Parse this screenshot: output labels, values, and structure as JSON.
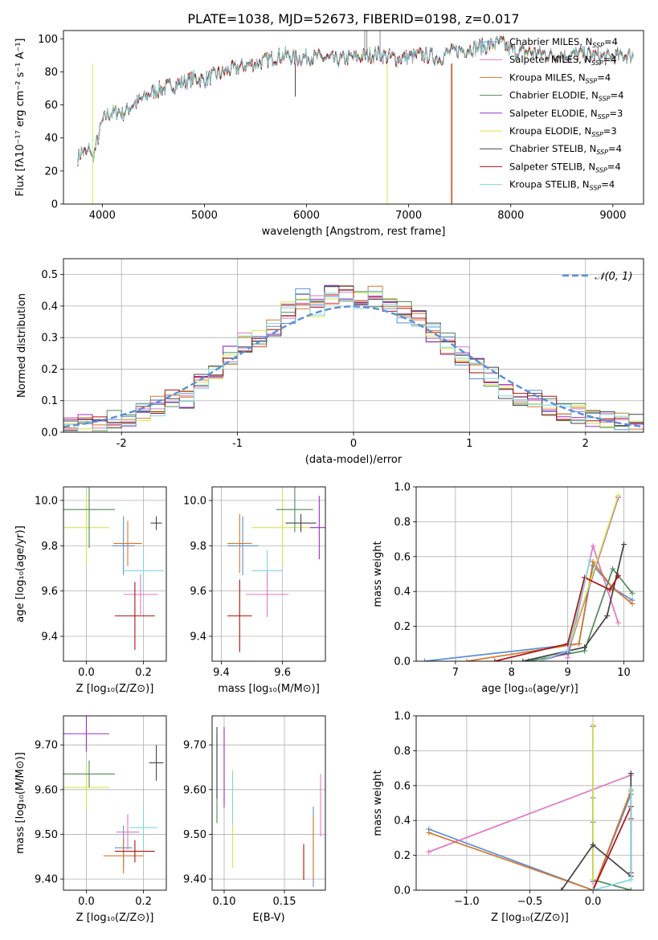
{
  "figure": {
    "title": "PLATE=1038, MJD=52673, FIBERID=0198, z=0.017",
    "legend_main": "Chabrier MILES, N",
    "legend_sub": "SSP",
    "legend_tail": "=4"
  },
  "chart_data": [
    {
      "id": "spectrum",
      "type": "line",
      "xlabel": "wavelength [Angstrom, rest frame]",
      "ylabel": "Flux [fλ10⁻¹⁷ erg cm⁻² s⁻¹ A⁻¹]",
      "xlim": [
        3620,
        9300
      ],
      "ylim": [
        0,
        105
      ],
      "xticks": [
        4000,
        5000,
        6000,
        7000,
        8000,
        9000
      ],
      "yticks": [
        0,
        20,
        40,
        60,
        80,
        100
      ],
      "x": [
        3760,
        3800,
        3850,
        3880,
        3900,
        3950,
        4000,
        4050,
        4100,
        4150,
        4200,
        4300,
        4400,
        4500,
        4600,
        4700,
        4800,
        4900,
        5000,
        5100,
        5200,
        5300,
        5400,
        5500,
        5600,
        5700,
        5800,
        5900,
        6000,
        6100,
        6200,
        6300,
        6400,
        6500,
        6600,
        6700,
        6800,
        6900,
        7000,
        7100,
        7200,
        7300,
        7400,
        7500,
        7600,
        7700,
        7800,
        7900,
        8000,
        8100,
        8200,
        8300,
        8400,
        8500,
        8600,
        8700,
        8800,
        8900,
        9000,
        9100,
        9200
      ],
      "y": [
        28,
        32,
        30,
        35,
        26,
        38,
        50,
        54,
        55,
        56,
        55,
        60,
        64,
        68,
        70,
        72,
        74,
        76,
        75,
        78,
        80,
        82,
        84,
        85,
        87,
        89,
        90,
        88,
        89,
        89,
        88,
        87,
        88,
        89,
        90,
        91,
        89,
        88,
        89,
        90,
        90,
        88,
        92,
        93,
        94,
        95,
        96,
        98,
        93,
        92,
        92,
        91,
        90,
        90,
        90,
        91,
        90,
        89,
        89,
        90,
        90
      ],
      "legend_position": "upper-right",
      "series": [
        {
          "name": "Chabrier MILES, N_SSP=4",
          "label_main": "Chabrier MILES, N",
          "label_tail": "=4",
          "color": "#5b8fd6"
        },
        {
          "name": "Salpeter MILES, N_SSP=4",
          "label_main": "Salpeter MILES, N",
          "label_tail": "=4",
          "color": "#e377c2"
        },
        {
          "name": "Kroupa MILES, N_SSP=4",
          "label_main": "Kroupa MILES, N",
          "label_tail": "=4",
          "color": "#d4782a"
        },
        {
          "name": "Chabrier ELODIE, N_SSP=4",
          "label_main": "Chabrier ELODIE, N",
          "label_tail": "=4",
          "color": "#4f8a5a"
        },
        {
          "name": "Salpeter ELODIE, N_SSP=3",
          "label_main": "Salpeter ELODIE, N",
          "label_tail": "=3",
          "color": "#9b30c8"
        },
        {
          "name": "Kroupa ELODIE, N_SSP=3",
          "label_main": "Kroupa ELODIE, N",
          "label_tail": "=3",
          "color": "#d4e84a"
        },
        {
          "name": "Chabrier STELIB, N_SSP=4",
          "label_main": "Chabrier STELIB, N",
          "label_tail": "=4",
          "color": "#444444"
        },
        {
          "name": "Salpeter STELIB, N_SSP=4",
          "label_main": "Salpeter STELIB, N",
          "label_tail": "=4",
          "color": "#b01010"
        },
        {
          "name": "Kroupa STELIB, N_SSP=4",
          "label_main": "Kroupa STELIB, N",
          "label_tail": "=4",
          "color": "#7fd6dc"
        }
      ]
    },
    {
      "id": "residuals",
      "type": "step",
      "xlabel": "(data-model)/error",
      "ylabel": "Normed distribution",
      "xlim": [
        -2.5,
        2.5
      ],
      "ylim": [
        0,
        0.55
      ],
      "xticks": [
        -2,
        -1,
        0,
        1,
        2
      ],
      "yticks": [
        0.0,
        0.1,
        0.2,
        0.3,
        0.4,
        0.5
      ],
      "bin_edges": [
        -2.5,
        -2.375,
        -2.25,
        -2.125,
        -2.0,
        -1.875,
        -1.75,
        -1.625,
        -1.5,
        -1.375,
        -1.25,
        -1.125,
        -1.0,
        -0.875,
        -0.75,
        -0.625,
        -0.5,
        -0.375,
        -0.25,
        -0.125,
        0.0,
        0.125,
        0.25,
        0.375,
        0.5,
        0.625,
        0.75,
        0.875,
        1.0,
        1.125,
        1.25,
        1.375,
        1.5,
        1.625,
        1.75,
        1.875,
        2.0,
        2.125,
        2.25,
        2.375,
        2.5
      ],
      "histogram": [
        0.02,
        0.025,
        0.03,
        0.04,
        0.05,
        0.06,
        0.08,
        0.1,
        0.11,
        0.15,
        0.19,
        0.24,
        0.28,
        0.3,
        0.34,
        0.38,
        0.42,
        0.4,
        0.44,
        0.45,
        0.42,
        0.43,
        0.41,
        0.38,
        0.36,
        0.32,
        0.28,
        0.24,
        0.2,
        0.18,
        0.14,
        0.12,
        0.1,
        0.08,
        0.07,
        0.06,
        0.05,
        0.04,
        0.03,
        0.025
      ],
      "normal_label": "𝒩(0, 1)",
      "normal_color": "#5b8fd6"
    },
    {
      "id": "age-vs-Z",
      "type": "errorbar",
      "xlabel": "Z [log₁₀(Z/Z⊙)]",
      "ylabel": "age  [log₁₀(age/yr)]",
      "xlim": [
        -0.08,
        0.28
      ],
      "ylim": [
        9.29,
        10.06
      ],
      "xticks": [
        0.0,
        0.2
      ],
      "yticks": [
        9.4,
        9.6,
        9.8,
        10.0
      ],
      "points": [
        {
          "x": -0.0,
          "xerr": 0.08,
          "y": 9.88,
          "yerr": 0.16,
          "color": "#d4e84a"
        },
        {
          "x": 0.01,
          "xerr": 0.09,
          "y": 9.96,
          "yerr": 0.17,
          "color": "#4f8a5a"
        },
        {
          "x": 0.13,
          "xerr": 0.04,
          "y": 9.8,
          "yerr": 0.13,
          "color": "#5b8fd6"
        },
        {
          "x": 0.145,
          "xerr": 0.05,
          "y": 9.81,
          "yerr": 0.1,
          "color": "#d4782a"
        },
        {
          "x": 0.2,
          "xerr": 0.07,
          "y": 9.69,
          "yerr": 0.09,
          "color": "#7fd6dc"
        },
        {
          "x": 0.19,
          "xerr": 0.06,
          "y": 9.585,
          "yerr": 0.09,
          "color": "#e377c2"
        },
        {
          "x": 0.17,
          "xerr": 0.07,
          "y": 9.49,
          "yerr": 0.15,
          "color": "#b01010"
        },
        {
          "x": 0.245,
          "xerr": 0.02,
          "y": 9.9,
          "yerr": 0.03,
          "color": "#444444"
        }
      ]
    },
    {
      "id": "age-vs-mass",
      "type": "errorbar",
      "xlabel": "mass [log₁₀(M/M⊙)]",
      "ylabel": "",
      "xlim": [
        9.37,
        9.74
      ],
      "ylim": [
        9.29,
        10.06
      ],
      "xticks": [
        9.4,
        9.6
      ],
      "yticks": [
        9.4,
        9.6,
        9.8,
        10.0
      ],
      "points": [
        {
          "x": 9.6,
          "xerr": 0.1,
          "y": 9.88,
          "yerr": 0.16,
          "color": "#d4e84a"
        },
        {
          "x": 9.64,
          "xerr": 0.06,
          "y": 9.96,
          "yerr": 0.1,
          "color": "#4f8a5a"
        },
        {
          "x": 9.47,
          "xerr": 0.05,
          "y": 9.8,
          "yerr": 0.13,
          "color": "#5b8fd6"
        },
        {
          "x": 9.46,
          "xerr": 0.04,
          "y": 9.81,
          "yerr": 0.13,
          "color": "#d4782a"
        },
        {
          "x": 9.55,
          "xerr": 0.05,
          "y": 9.69,
          "yerr": 0.09,
          "color": "#7fd6dc"
        },
        {
          "x": 9.55,
          "xerr": 0.07,
          "y": 9.585,
          "yerr": 0.1,
          "color": "#e377c2"
        },
        {
          "x": 9.46,
          "xerr": 0.04,
          "y": 9.49,
          "yerr": 0.16,
          "color": "#b01010"
        },
        {
          "x": 9.72,
          "xerr": 0.03,
          "y": 9.88,
          "yerr": 0.14,
          "color": "#9b30c8"
        },
        {
          "x": 9.66,
          "xerr": 0.05,
          "y": 9.9,
          "yerr": 0.04,
          "color": "#444444"
        }
      ]
    },
    {
      "id": "weight-vs-age",
      "type": "line",
      "xlabel": "age  [log₁₀(age/yr)]",
      "ylabel": "mass weight",
      "xlim": [
        6.3,
        10.35
      ],
      "ylim": [
        0,
        1.0
      ],
      "xticks": [
        7,
        8,
        9,
        10
      ],
      "yticks": [
        0.0,
        0.2,
        0.4,
        0.6,
        0.8,
        1.0
      ],
      "series": [
        {
          "color": "#5b8fd6",
          "x": [
            6.45,
            9.2,
            9.45,
            9.8,
            10.15
          ],
          "y": [
            0.0,
            0.1,
            0.55,
            0.42,
            0.35
          ]
        },
        {
          "color": "#e377c2",
          "x": [
            9.0,
            9.45,
            9.9
          ],
          "y": [
            0.02,
            0.66,
            0.22
          ]
        },
        {
          "color": "#d4782a",
          "x": [
            7.2,
            9.2,
            9.45,
            9.8,
            10.15
          ],
          "y": [
            0.0,
            0.1,
            0.57,
            0.42,
            0.33
          ]
        },
        {
          "color": "#4f8a5a",
          "x": [
            8.3,
            9.3,
            9.8,
            10.15
          ],
          "y": [
            0.0,
            0.06,
            0.53,
            0.39
          ]
        },
        {
          "color": "#9b30c8",
          "x": [
            8.5,
            9.0,
            9.9
          ],
          "y": [
            0.0,
            0.05,
            0.94
          ]
        },
        {
          "color": "#d4e84a",
          "x": [
            8.5,
            9.0,
            9.9
          ],
          "y": [
            0.0,
            0.06,
            0.95
          ]
        },
        {
          "color": "#444444",
          "x": [
            8.2,
            9.3,
            9.7,
            10.0
          ],
          "y": [
            0.0,
            0.08,
            0.26,
            0.67
          ]
        },
        {
          "color": "#b01010",
          "x": [
            7.7,
            9.0,
            9.3,
            9.75,
            9.9
          ],
          "y": [
            0.0,
            0.1,
            0.48,
            0.41,
            0.49
          ]
        },
        {
          "color": "#7fd6dc",
          "x": [
            8.5,
            9.0,
            9.4
          ],
          "y": [
            0.0,
            0.06,
            0.58
          ]
        }
      ]
    },
    {
      "id": "mass-vs-Z",
      "type": "errorbar",
      "xlabel": "Z [log₁₀(Z/Z⊙)]",
      "ylabel": "mass [log₁₀(M/M⊙)]",
      "xlim": [
        -0.08,
        0.28
      ],
      "ylim": [
        9.375,
        9.765
      ],
      "xticks": [
        0.0,
        0.2
      ],
      "yticks": [
        9.4,
        9.5,
        9.6,
        9.7
      ],
      "points": [
        {
          "x": 0.0,
          "xerr": 0.08,
          "y": 9.725,
          "yerr": 0.04,
          "color": "#9b30c8"
        },
        {
          "x": 0.0,
          "xerr": 0.08,
          "y": 9.605,
          "yerr": 0.05,
          "color": "#d4e84a"
        },
        {
          "x": 0.01,
          "xerr": 0.09,
          "y": 9.635,
          "yerr": 0.03,
          "color": "#4f8a5a"
        },
        {
          "x": 0.13,
          "xerr": 0.03,
          "y": 9.47,
          "yerr": 0.05,
          "color": "#5b8fd6"
        },
        {
          "x": 0.145,
          "xerr": 0.04,
          "y": 9.505,
          "yerr": 0.04,
          "color": "#e377c2"
        },
        {
          "x": 0.2,
          "xerr": 0.05,
          "y": 9.515,
          "yerr": 0.05,
          "color": "#7fd6dc"
        },
        {
          "x": 0.13,
          "xerr": 0.07,
          "y": 9.452,
          "yerr": 0.04,
          "color": "#d4782a"
        },
        {
          "x": 0.17,
          "xerr": 0.07,
          "y": 9.462,
          "yerr": 0.025,
          "color": "#b01010"
        },
        {
          "x": 0.245,
          "xerr": 0.025,
          "y": 9.66,
          "yerr": 0.04,
          "color": "#444444"
        }
      ]
    },
    {
      "id": "mass-vs-EBV",
      "type": "errorbar",
      "xlabel": "E(B-V)",
      "ylabel": "",
      "xlim": [
        0.09,
        0.184
      ],
      "ylim": [
        9.375,
        9.765
      ],
      "xticks": [
        0.1,
        0.15
      ],
      "yticks": [
        9.4,
        9.5,
        9.6,
        9.7
      ],
      "points": [
        {
          "x": 0.094,
          "xerr": 0.0,
          "y": 9.625,
          "yerr": 0.1,
          "color": "#4f8a5a"
        },
        {
          "x": 0.094,
          "xerr": 0.0,
          "y": 9.66,
          "yerr": 0.08,
          "color": "#444444"
        },
        {
          "x": 0.1,
          "xerr": 0.0,
          "y": 9.65,
          "yerr": 0.09,
          "color": "#9b30c8"
        },
        {
          "x": 0.107,
          "xerr": 0.0,
          "y": 9.535,
          "yerr": 0.11,
          "color": "#d4e84a"
        },
        {
          "x": 0.107,
          "xerr": 0.0,
          "y": 9.58,
          "yerr": 0.06,
          "color": "#7fd6dc"
        },
        {
          "x": 0.166,
          "xerr": 0.0,
          "y": 9.438,
          "yerr": 0.04,
          "color": "#b01010"
        },
        {
          "x": 0.174,
          "xerr": 0.0,
          "y": 9.472,
          "yerr": 0.09,
          "color": "#5b8fd6"
        },
        {
          "x": 0.174,
          "xerr": 0.0,
          "y": 9.47,
          "yerr": 0.07,
          "color": "#d4782a"
        },
        {
          "x": 0.18,
          "xerr": 0.0,
          "y": 9.565,
          "yerr": 0.07,
          "color": "#e377c2"
        }
      ]
    },
    {
      "id": "weight-vs-Z",
      "type": "line",
      "xlabel": "Z [log₁₀(Z/Z⊙)]",
      "ylabel": "mass weight",
      "xlim": [
        -1.4,
        0.4
      ],
      "ylim": [
        0,
        1.0
      ],
      "xticks": [
        -1.0,
        -0.5,
        0.0
      ],
      "yticks": [
        0.0,
        0.2,
        0.4,
        0.6,
        0.8,
        1.0
      ],
      "series": [
        {
          "color": "#5b8fd6",
          "x": [
            -1.3,
            0.0,
            0.3
          ],
          "y": [
            0.35,
            0.0,
            0.55
          ]
        },
        {
          "color": "#e377c2",
          "x": [
            -1.3,
            0.3
          ],
          "y": [
            0.22,
            0.66
          ]
        },
        {
          "color": "#d4782a",
          "x": [
            -1.3,
            0.0,
            0.3
          ],
          "y": [
            0.33,
            0.0,
            0.57
          ]
        },
        {
          "color": "#4f8a5a",
          "x": [
            0.0,
            0.0,
            0.0,
            0.3,
            0.3
          ],
          "y": [
            0.53,
            0.39,
            0.06,
            0.0,
            0.0
          ]
        },
        {
          "color": "#9b30c8",
          "x": [
            0.0,
            0.0
          ],
          "y": [
            0.94,
            0.05
          ]
        },
        {
          "color": "#d4e84a",
          "x": [
            0.0,
            0.0
          ],
          "y": [
            0.95,
            0.06
          ]
        },
        {
          "color": "#444444",
          "x": [
            -0.25,
            0.0,
            0.3,
            0.3
          ],
          "y": [
            0.0,
            0.26,
            0.08,
            0.67
          ]
        },
        {
          "color": "#b01010",
          "x": [
            0.0,
            0.3,
            0.3,
            0.3
          ],
          "y": [
            0.0,
            0.48,
            0.41,
            0.1
          ]
        },
        {
          "color": "#7fd6dc",
          "x": [
            0.0,
            0.3,
            0.3
          ],
          "y": [
            0.0,
            0.06,
            0.58
          ]
        }
      ]
    }
  ]
}
